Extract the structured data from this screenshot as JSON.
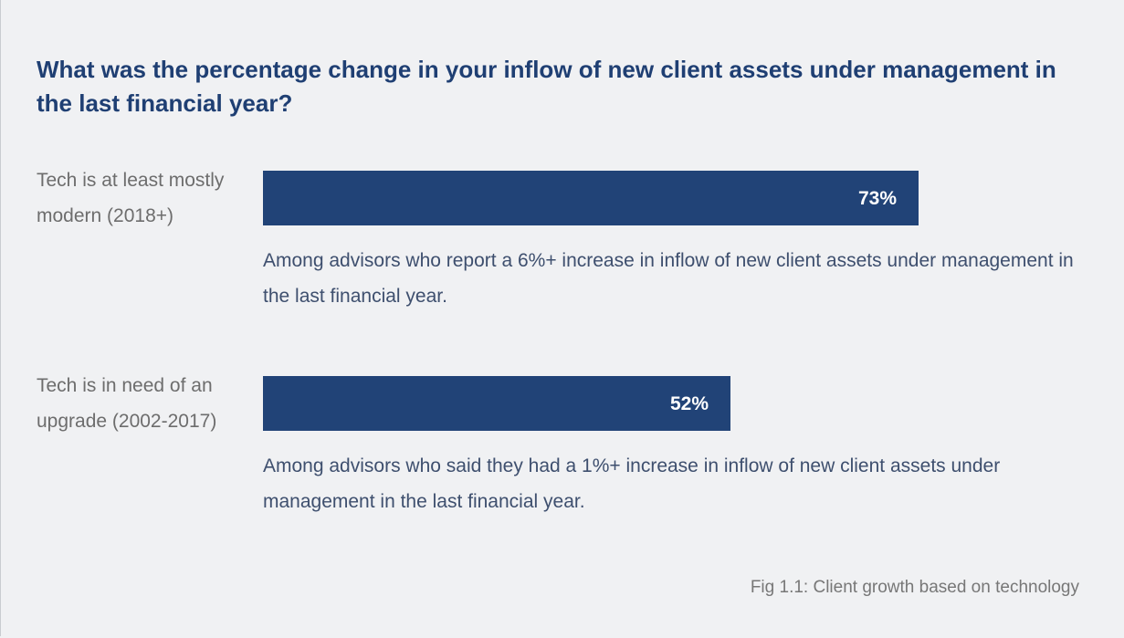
{
  "title": "What was the percentage change in your inflow of new client assets under management in the last financial year?",
  "caption": "Fig 1.1: Client growth based on technology",
  "colors": {
    "bar": "#214377",
    "title": "#1f3f73",
    "background": "#f0f1f3"
  },
  "chart_data": {
    "type": "bar",
    "orientation": "horizontal",
    "title": "What was the percentage change in your inflow of new client assets under management in the last financial year?",
    "categories": [
      "Tech is at least mostly modern (2018+)",
      "Tech is in need of an upgrade (2002-2017)"
    ],
    "values": [
      73,
      52
    ],
    "value_labels": [
      "73%",
      "52%"
    ],
    "notes": [
      "Among advisors who report a 6%+ increase in inflow of new client assets under management in the last financial year.",
      "Among advisors who said they had a 1%+ increase in inflow of new client assets under management in the last financial year."
    ],
    "xlim": [
      0,
      100
    ],
    "grid": false,
    "legend": "none"
  }
}
